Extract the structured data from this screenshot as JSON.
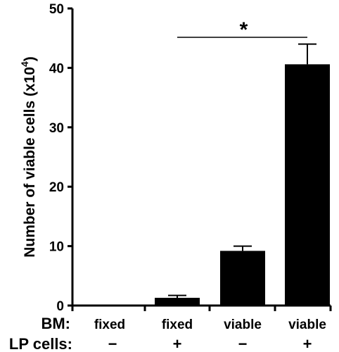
{
  "chart_data": {
    "type": "bar",
    "ylabel": "Number of viable cells (x10",
    "ylabel_exp": "4",
    "ylabel_close": ")",
    "ylim": [
      0,
      50
    ],
    "yticks": [
      0,
      10,
      20,
      30,
      40,
      50
    ],
    "categories": [
      "fixed / −",
      "fixed / +",
      "viable / −",
      "viable / +"
    ],
    "values": [
      0.1,
      1.3,
      9.2,
      40.6
    ],
    "errors": [
      0,
      0.4,
      0.8,
      3.4
    ],
    "bar_color": "#000000",
    "factors": [
      {
        "label": "BM:",
        "levels": [
          "fixed",
          "fixed",
          "viable",
          "viable"
        ]
      },
      {
        "label": "LP cells:",
        "levels": [
          "−",
          "+",
          "−",
          "+"
        ]
      }
    ],
    "significance": {
      "from": 1,
      "to": 3,
      "label": "*"
    },
    "grid": false
  }
}
